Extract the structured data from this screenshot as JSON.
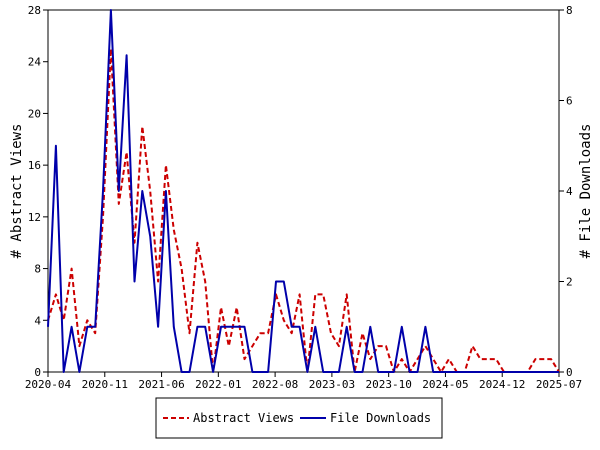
{
  "chart_data": {
    "type": "line",
    "x_tick_labels": [
      "2020-04",
      "2020-11",
      "2021-06",
      "2022-01",
      "2022-08",
      "2023-03",
      "2023-10",
      "2024-05",
      "2024-12",
      "2025-07"
    ],
    "y_left": {
      "label": "# Abstract Views",
      "ticks": [
        "0",
        "4",
        "8",
        "12",
        "16",
        "20",
        "24",
        "28"
      ],
      "range": [
        0,
        28
      ]
    },
    "y_right": {
      "label": "# File Downloads",
      "ticks": [
        "0",
        "2",
        "4",
        "6",
        "8"
      ],
      "range": [
        0,
        8
      ]
    },
    "grid": false,
    "legend_position": "bottom-center",
    "series": [
      {
        "name": "Abstract Views",
        "axis": "left",
        "color": "#cc0000",
        "dash": "dashed",
        "values": [
          4,
          6,
          4,
          8,
          2,
          4,
          3,
          12,
          25,
          13,
          17,
          10,
          19,
          14,
          7,
          16,
          11,
          8,
          3,
          10,
          7,
          0,
          5,
          2,
          5,
          1,
          2,
          3,
          3,
          6,
          4,
          3,
          6,
          0,
          6,
          6,
          3,
          2,
          6,
          0,
          3,
          1,
          2,
          2,
          0,
          1,
          0,
          1,
          2,
          1,
          0,
          1,
          0,
          0,
          2,
          1,
          1,
          1,
          0,
          0,
          0,
          0,
          1,
          1,
          1,
          0
        ]
      },
      {
        "name": "File Downloads",
        "axis": "right",
        "color": "#0000aa",
        "dash": "solid",
        "values": [
          1,
          5,
          0,
          1,
          0,
          1,
          1,
          4,
          8,
          4,
          7,
          2,
          4,
          3,
          1,
          4,
          1,
          0,
          0,
          1,
          1,
          0,
          1,
          1,
          1,
          1,
          0,
          0,
          0,
          2,
          2,
          1,
          1,
          0,
          1,
          0,
          0,
          0,
          1,
          0,
          0,
          1,
          0,
          0,
          0,
          1,
          0,
          0,
          1,
          0,
          0,
          0,
          0,
          0,
          0,
          0,
          0,
          0,
          0,
          0,
          0,
          0,
          0,
          0,
          0,
          0
        ]
      }
    ]
  }
}
